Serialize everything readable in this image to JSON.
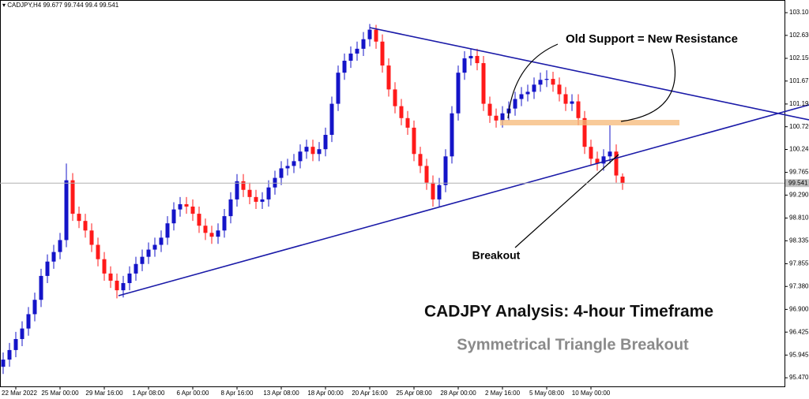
{
  "chart_data": {
    "type": "candlestick",
    "symbol_label": "CADJPY,H4",
    "title": "CADJPY Analysis: 4-hour Timeframe",
    "subtitle": "Symmetrical Triangle Breakout",
    "annotations": [
      "Old Support = New Resistance",
      "Breakout"
    ],
    "up_color": "#1414c8",
    "down_color": "#ff1a1a",
    "ylim": [
      95.29,
      103.37
    ],
    "yticks": [
      103.105,
      {
        "value": 102.63,
        "label": "102.630"
      },
      {
        "value": 102.15,
        "label": "102.150"
      },
      101.675,
      101.195,
      {
        "value": 100.72,
        "label": "100.720"
      },
      100.245,
      99.765,
      {
        "value": 99.29,
        "label": "99.290"
      },
      {
        "value": 98.81,
        "label": "98.810"
      },
      98.335,
      97.855,
      {
        "value": 97.38,
        "label": "97.380"
      },
      {
        "value": 96.9,
        "label": "96.900"
      },
      96.425,
      95.945,
      {
        "value": 95.47,
        "label": "95.470"
      }
    ],
    "xticks": [
      {
        "value": 2,
        "label": "22 Mar 2022"
      },
      {
        "value": 9,
        "label": "25 Mar 00:00"
      },
      {
        "value": 16,
        "label": "29 Mar 16:00"
      },
      {
        "value": 23,
        "label": "1 Apr 08:00"
      },
      {
        "value": 30,
        "label": "6 Apr 00:00"
      },
      {
        "value": 37,
        "label": "8 Apr 16:00"
      },
      {
        "value": 44,
        "label": "13 Apr 08:00"
      },
      {
        "value": 51,
        "label": "18 Apr 00:00"
      },
      {
        "value": 58,
        "label": "20 Apr 16:00"
      },
      {
        "value": 65,
        "label": "25 Apr 08:00"
      },
      {
        "value": 72,
        "label": "28 Apr 00:00"
      },
      {
        "value": 79,
        "label": "2 May 16:00"
      },
      {
        "value": 86,
        "label": "5 May 08:00"
      },
      {
        "value": 93,
        "label": "10 May 00:00"
      }
    ],
    "open": [
      95.7,
      95.85,
      96.05,
      96.28,
      96.5,
      96.8,
      97.1,
      97.6,
      97.9,
      98.1,
      98.35,
      99.6,
      98.9,
      98.75,
      98.55,
      98.25,
      97.95,
      97.65,
      97.5,
      97.3,
      97.45,
      97.65,
      97.85,
      98.0,
      98.15,
      98.25,
      98.4,
      98.7,
      98.99,
      99.1,
      99.05,
      98.9,
      98.65,
      98.5,
      98.42,
      98.55,
      98.85,
      99.2,
      99.58,
      99.4,
      99.25,
      99.15,
      99.2,
      99.45,
      99.65,
      99.85,
      99.9,
      100.0,
      100.2,
      100.3,
      100.15,
      100.25,
      100.55,
      101.2,
      101.85,
      102.1,
      102.25,
      102.35,
      102.55,
      102.75,
      102.5,
      102.0,
      101.5,
      101.15,
      100.9,
      100.7,
      100.15,
      99.9,
      99.55,
      99.2,
      99.5,
      100.1,
      101.0,
      101.85,
      102.15,
      102.2,
      102.05,
      101.2,
      100.95,
      100.85,
      101.0,
      101.1,
      101.3,
      101.4,
      101.45,
      101.6,
      101.7,
      101.72,
      101.6,
      101.4,
      101.2,
      101.25,
      100.9,
      100.3,
      100.05,
      99.95,
      100.1,
      100.2,
      99.677
    ],
    "high": [
      96.0,
      96.2,
      96.43,
      96.65,
      96.95,
      97.25,
      97.75,
      98.05,
      98.25,
      98.5,
      99.95,
      99.75,
      99.05,
      98.9,
      98.7,
      98.4,
      98.1,
      97.8,
      97.65,
      97.6,
      97.8,
      98.0,
      98.15,
      98.3,
      98.4,
      98.55,
      98.85,
      99.14,
      99.25,
      99.25,
      99.2,
      99.05,
      98.8,
      98.65,
      98.7,
      99.0,
      99.35,
      99.73,
      99.73,
      99.55,
      99.4,
      99.35,
      99.6,
      99.8,
      100.0,
      100.05,
      100.15,
      100.35,
      100.45,
      100.45,
      100.4,
      100.7,
      101.35,
      102.0,
      102.25,
      102.4,
      102.5,
      102.7,
      102.87,
      102.85,
      102.65,
      102.15,
      101.65,
      101.3,
      101.05,
      100.85,
      100.3,
      100.05,
      99.7,
      99.65,
      100.25,
      101.15,
      102.0,
      102.3,
      102.35,
      102.35,
      102.2,
      101.35,
      101.1,
      101.15,
      101.25,
      101.45,
      101.55,
      101.6,
      101.75,
      101.85,
      101.9,
      101.87,
      101.75,
      101.55,
      101.4,
      101.4,
      101.05,
      100.45,
      100.2,
      100.25,
      100.75,
      100.35,
      99.744
    ],
    "low": [
      95.55,
      95.7,
      95.9,
      96.13,
      96.35,
      96.65,
      96.95,
      97.45,
      97.75,
      97.95,
      98.2,
      98.75,
      98.6,
      98.4,
      98.1,
      97.8,
      97.5,
      97.35,
      97.13,
      97.15,
      97.3,
      97.5,
      97.7,
      97.85,
      98.0,
      98.1,
      98.25,
      98.55,
      98.84,
      98.9,
      98.75,
      98.5,
      98.35,
      98.27,
      98.27,
      98.4,
      98.7,
      99.05,
      99.25,
      99.1,
      99.0,
      99.0,
      99.05,
      99.3,
      99.5,
      99.7,
      99.75,
      99.85,
      100.05,
      100.0,
      100.0,
      100.1,
      100.4,
      101.05,
      101.7,
      101.95,
      102.1,
      102.2,
      102.4,
      102.35,
      101.85,
      101.35,
      101.0,
      100.75,
      100.55,
      100.0,
      99.75,
      99.4,
      99.05,
      99.05,
      99.35,
      99.95,
      100.85,
      101.7,
      102.0,
      101.9,
      101.05,
      100.8,
      100.7,
      100.7,
      100.85,
      100.95,
      101.15,
      101.25,
      101.3,
      101.45,
      101.55,
      101.45,
      101.25,
      101.05,
      101.05,
      100.75,
      100.15,
      99.9,
      99.8,
      99.8,
      99.95,
      99.55,
      99.4
    ],
    "close": [
      95.85,
      96.05,
      96.28,
      96.5,
      96.8,
      97.1,
      97.6,
      97.9,
      98.1,
      98.35,
      99.6,
      98.9,
      98.75,
      98.55,
      98.25,
      97.95,
      97.65,
      97.5,
      97.3,
      97.45,
      97.65,
      97.85,
      98.0,
      98.15,
      98.25,
      98.4,
      98.7,
      98.99,
      99.1,
      99.05,
      98.9,
      98.65,
      98.5,
      98.42,
      98.55,
      98.85,
      99.2,
      99.58,
      99.4,
      99.25,
      99.15,
      99.2,
      99.45,
      99.65,
      99.85,
      99.9,
      100.0,
      100.2,
      100.3,
      100.15,
      100.25,
      100.55,
      101.2,
      101.85,
      102.1,
      102.25,
      102.35,
      102.55,
      102.75,
      102.5,
      102.0,
      101.5,
      101.15,
      100.9,
      100.7,
      100.15,
      99.9,
      99.55,
      99.2,
      99.5,
      100.1,
      101.0,
      101.85,
      102.15,
      102.2,
      102.05,
      101.2,
      100.95,
      100.85,
      101.0,
      101.1,
      101.3,
      101.4,
      101.45,
      101.6,
      101.7,
      101.72,
      101.6,
      101.4,
      101.2,
      101.25,
      100.9,
      100.3,
      100.05,
      99.95,
      100.1,
      100.2,
      99.7,
      99.541
    ]
  }
}
